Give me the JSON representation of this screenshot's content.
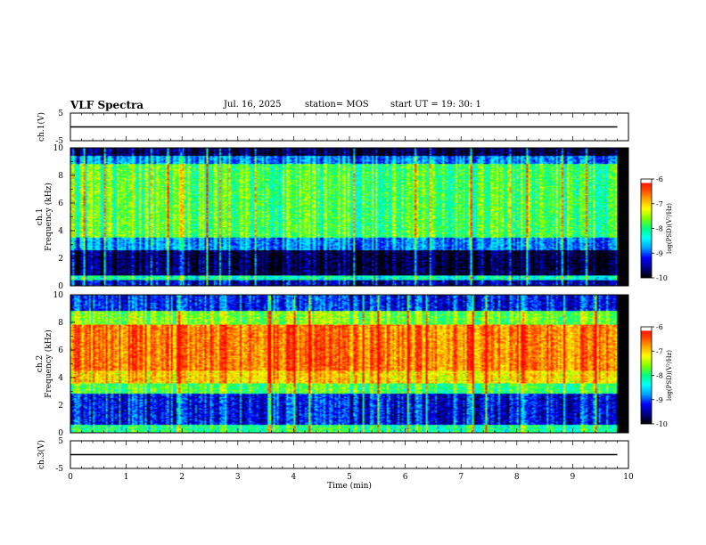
{
  "header": {
    "title": "VLF Spectra",
    "date": "Jul. 16, 2025",
    "station": "station= MOS",
    "start": "start  UT =  19: 30: 1"
  },
  "colors": {
    "cmap": [
      "#000000",
      "#00008b",
      "#0000ff",
      "#00a0ff",
      "#00ffff",
      "#00ff80",
      "#7fff00",
      "#ffff00",
      "#ffa500",
      "#ff4000",
      "#ff0000",
      "#ffffff"
    ],
    "trace": "#000000"
  },
  "chart_data": [
    {
      "type": "line",
      "panel": "ch1-voltage",
      "ylabel": "ch.1(V)",
      "ylim": [
        -5,
        5
      ],
      "yticks": [
        "5",
        "-5"
      ],
      "xlim": [
        0,
        10
      ],
      "series": [
        {
          "x": [
            0,
            9.8
          ],
          "values": [
            0,
            0
          ]
        }
      ]
    },
    {
      "type": "heatmap",
      "panel": "ch1-spectrogram",
      "ylabel": "ch.1\nFrequency (kHz)",
      "ylim": [
        0,
        10
      ],
      "yticks": [
        "0",
        "2",
        "4",
        "6",
        "8",
        "10"
      ],
      "xlim": [
        0,
        10
      ],
      "x_end": 9.8,
      "band_levels": [
        {
          "from": 0,
          "to": 0.4,
          "level": 0.15
        },
        {
          "from": 0.4,
          "to": 0.75,
          "level": 0.45
        },
        {
          "from": 0.75,
          "to": 2.6,
          "level": 0.05
        },
        {
          "from": 2.6,
          "to": 3.5,
          "level": 0.3
        },
        {
          "from": 3.5,
          "to": 8.8,
          "level": 0.55
        },
        {
          "from": 8.8,
          "to": 9.4,
          "level": 0.3
        },
        {
          "from": 9.4,
          "to": 10,
          "level": 0.05
        }
      ],
      "colorbar": {
        "label": "log(PSD)(V²/Hz)",
        "ticks": [
          "-6",
          "-7",
          "-8",
          "-9",
          "-10"
        ],
        "range": [
          -10,
          -6
        ]
      }
    },
    {
      "type": "heatmap",
      "panel": "ch2-spectrogram",
      "ylabel": "ch.2\nFrequency (kHz)",
      "ylim": [
        0,
        10
      ],
      "yticks": [
        "0",
        "2",
        "4",
        "6",
        "8",
        "10"
      ],
      "xlim": [
        0,
        10
      ],
      "x_end": 9.8,
      "band_levels": [
        {
          "from": 0,
          "to": 0.6,
          "level": 0.5
        },
        {
          "from": 0.6,
          "to": 2.8,
          "level": 0.2
        },
        {
          "from": 2.8,
          "to": 3.6,
          "level": 0.55
        },
        {
          "from": 3.6,
          "to": 4.5,
          "level": 0.75
        },
        {
          "from": 4.5,
          "to": 7.8,
          "level": 0.85
        },
        {
          "from": 7.8,
          "to": 8.8,
          "level": 0.6
        },
        {
          "from": 8.8,
          "to": 10,
          "level": 0.22
        }
      ],
      "colorbar": {
        "label": "log(PSD)(V²/Hz)",
        "ticks": [
          "-6",
          "-7",
          "-8",
          "-9",
          "-10"
        ],
        "range": [
          -10,
          -6
        ]
      }
    },
    {
      "type": "line",
      "panel": "ch3-voltage",
      "ylabel": "ch.3(V)",
      "ylim": [
        -5,
        5
      ],
      "yticks": [
        "5",
        "-5"
      ],
      "xlim": [
        0,
        10
      ],
      "xlabel": "Time (min)",
      "xticks": [
        "0",
        "1",
        "2",
        "3",
        "4",
        "5",
        "6",
        "7",
        "8",
        "9",
        "10"
      ],
      "series": [
        {
          "x": [
            0,
            9.8
          ],
          "values": [
            0,
            0
          ]
        }
      ]
    }
  ]
}
